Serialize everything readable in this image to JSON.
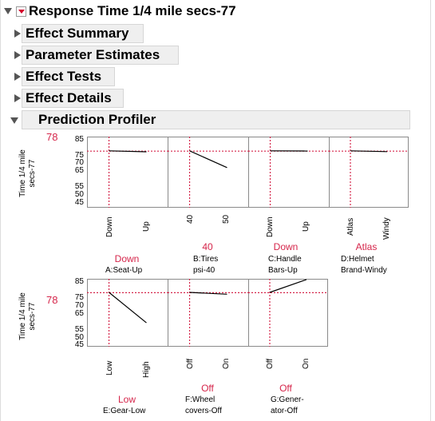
{
  "report": {
    "title": "Response Time 1/4 mile secs-77",
    "sections": [
      "Effect Summary",
      "Parameter Estimates",
      "Effect Tests",
      "Effect Details"
    ],
    "profiler_title": "Prediction Profiler"
  },
  "profiler": {
    "rows": [
      {
        "ylabel_line1": "Time 1/4 mile",
        "ylabel_line2": "secs-77",
        "current_value": "78",
        "yticks": [
          "85",
          "75",
          "70",
          "65",
          "55",
          "50",
          "45"
        ],
        "factors": [
          {
            "current": "Down",
            "name_line1": "A:Seat-Up",
            "name_line2": "",
            "ticks": [
              "Down",
              "Up"
            ]
          },
          {
            "current": "40",
            "name_line1": "B:Tires",
            "name_line2": "psi-40",
            "ticks": [
              "40",
              "50"
            ]
          },
          {
            "current": "Down",
            "name_line1": "C:Handle",
            "name_line2": "Bars-Up",
            "ticks": [
              "Down",
              "Up"
            ]
          },
          {
            "current": "Atlas",
            "name_line1": "D:Helmet",
            "name_line2": "Brand-Windy",
            "ticks": [
              "Atlas",
              "Windy"
            ]
          }
        ]
      },
      {
        "ylabel_line1": "Time 1/4 mile",
        "ylabel_line2": "secs-77",
        "current_value": "78",
        "yticks": [
          "85",
          "75",
          "70",
          "65",
          "55",
          "50",
          "45"
        ],
        "factors": [
          {
            "current": "Low",
            "name_line1": "E:Gear-Low",
            "name_line2": "",
            "ticks": [
              "Low",
              "High"
            ]
          },
          {
            "current": "Off",
            "name_line1": "F:Wheel",
            "name_line2": "covers-Off",
            "ticks": [
              "Off",
              "On"
            ]
          },
          {
            "current": "Off",
            "name_line1": "G:Gener-",
            "name_line2": "ator-Off",
            "ticks": [
              "Off",
              "On"
            ]
          }
        ]
      }
    ]
  },
  "chart_data": [
    {
      "type": "line",
      "ylim": [
        43,
        87
      ],
      "current_y": 78,
      "panels": [
        {
          "factor": "A:Seat-Up",
          "x": [
            "Down",
            "Up"
          ],
          "y": [
            78.2,
            77.6
          ]
        },
        {
          "factor": "B:Tires psi-40",
          "x": [
            "40",
            "50"
          ],
          "y": [
            78.2,
            67.8
          ]
        },
        {
          "factor": "C:Handle Bars-Up",
          "x": [
            "Down",
            "Up"
          ],
          "y": [
            78.2,
            78.1
          ]
        },
        {
          "factor": "D:Helmet Brand-Windy",
          "x": [
            "Atlas",
            "Windy"
          ],
          "y": [
            78.2,
            77.7
          ]
        }
      ]
    },
    {
      "type": "line",
      "ylim": [
        43,
        87
      ],
      "current_y": 78,
      "panels": [
        {
          "factor": "E:Gear-Low",
          "x": [
            "Low",
            "High"
          ],
          "y": [
            78.2,
            58.5
          ]
        },
        {
          "factor": "F:Wheel covers-Off",
          "x": [
            "Off",
            "On"
          ],
          "y": [
            78.2,
            77.0
          ]
        },
        {
          "factor": "G:Gener-ator-Off",
          "x": [
            "Off",
            "On"
          ],
          "y": [
            78.2,
            86.5
          ]
        }
      ]
    }
  ],
  "colors": {
    "accent": "#d5254a",
    "header_bg": "#efefef",
    "plot_border": "#8a8a8a"
  }
}
